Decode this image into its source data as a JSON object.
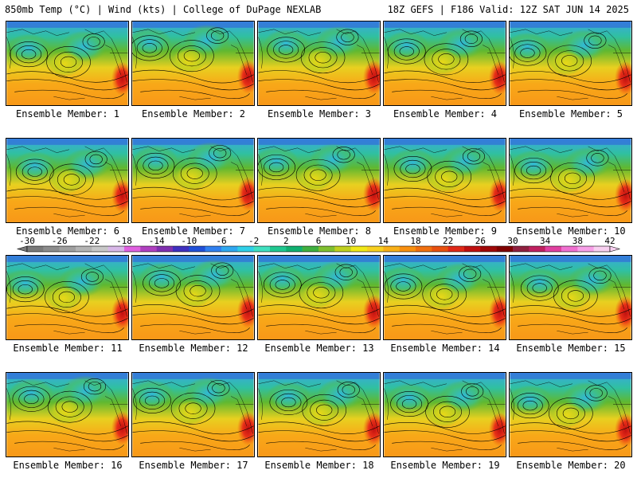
{
  "header": {
    "title_left": "850mb Temp (°C) | Wind (kts) | College of DuPage NEXLAB",
    "title_right": "18Z GEFS | F186 Valid: 12Z SAT JUN 14 2025"
  },
  "panels": [
    {
      "label": "Ensemble Member: 1"
    },
    {
      "label": "Ensemble Member: 2"
    },
    {
      "label": "Ensemble Member: 3"
    },
    {
      "label": "Ensemble Member: 4"
    },
    {
      "label": "Ensemble Member: 5"
    },
    {
      "label": "Ensemble Member: 6"
    },
    {
      "label": "Ensemble Member: 7"
    },
    {
      "label": "Ensemble Member: 8"
    },
    {
      "label": "Ensemble Member: 9"
    },
    {
      "label": "Ensemble Member: 10"
    },
    {
      "label": "Ensemble Member: 11"
    },
    {
      "label": "Ensemble Member: 12"
    },
    {
      "label": "Ensemble Member: 13"
    },
    {
      "label": "Ensemble Member: 14"
    },
    {
      "label": "Ensemble Member: 15"
    },
    {
      "label": "Ensemble Member: 16"
    },
    {
      "label": "Ensemble Member: 17"
    },
    {
      "label": "Ensemble Member: 18"
    },
    {
      "label": "Ensemble Member: 19"
    },
    {
      "label": "Ensemble Member: 20"
    }
  ],
  "colorbar": {
    "tick_labels": [
      "-30",
      "-26",
      "-22",
      "-18",
      "-14",
      "-10",
      "-6",
      "-2",
      "2",
      "6",
      "10",
      "14",
      "18",
      "22",
      "26",
      "30",
      "34",
      "38",
      "42"
    ],
    "colors": [
      "#7a7a7a",
      "#8c8c8c",
      "#a0a0a0",
      "#b4b4b4",
      "#c8c8c8",
      "#d8b8e8",
      "#e060e0",
      "#b040c0",
      "#8030b0",
      "#4030c0",
      "#2050d8",
      "#3080f0",
      "#30a8f0",
      "#30d0e8",
      "#40e0c0",
      "#20c890",
      "#10b070",
      "#40b040",
      "#80c030",
      "#c0d020",
      "#f0e818",
      "#f8d020",
      "#f8b018",
      "#f89010",
      "#f07010",
      "#e85010",
      "#e02818",
      "#c01010",
      "#a00808",
      "#800000",
      "#902040",
      "#c02060",
      "#e040a0",
      "#f070d0",
      "#f8a0e8",
      "#f8d0f0"
    ]
  }
}
